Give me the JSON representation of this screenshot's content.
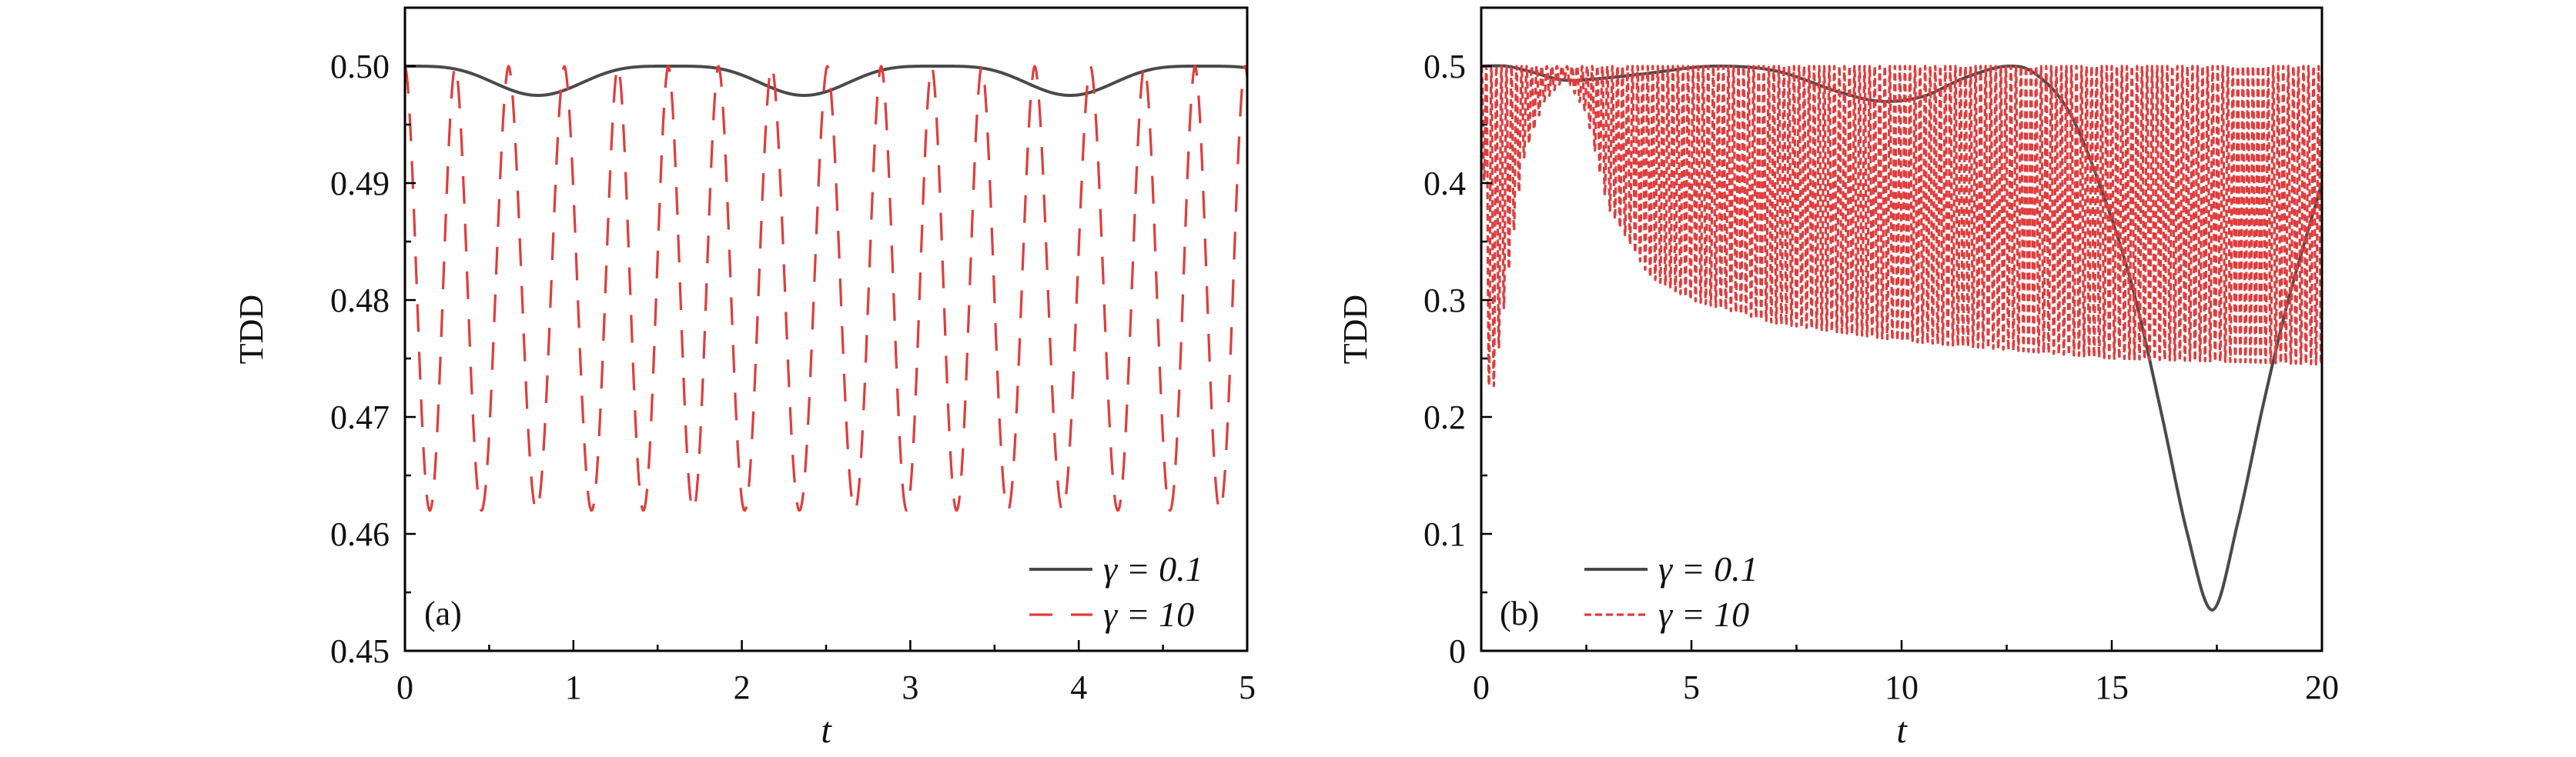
{
  "chart_data": [
    {
      "type": "line",
      "panel_label": "(a)",
      "xlabel": "t",
      "ylabel": "TDD",
      "xlim": [
        0,
        5
      ],
      "ylim": [
        0.45,
        0.505
      ],
      "xticks": [
        0,
        1,
        2,
        3,
        4,
        5
      ],
      "xtick_labels": [
        "0",
        "1",
        "2",
        "3",
        "4",
        "5"
      ],
      "yticks": [
        0.45,
        0.46,
        0.47,
        0.48,
        0.49,
        0.5
      ],
      "ytick_labels": [
        "0.45",
        "0.46",
        "0.47",
        "0.48",
        "0.49",
        "0.50"
      ],
      "xminor": 0.5,
      "yminor": 0.005,
      "legend_position": "bottom-right",
      "series": [
        {
          "name": "γ = 0.1",
          "color": "#4a4a4a",
          "style": "solid",
          "model": {
            "kind": "flat-dips",
            "max": 0.5,
            "min": 0.4975,
            "period": 1.58,
            "first_min": 0.79
          }
        },
        {
          "name": "γ = 10",
          "color": "#e03c3c",
          "style": "dashed",
          "model": {
            "kind": "oscillation",
            "max": 0.5,
            "min": 0.462,
            "period": 0.3125
          }
        }
      ]
    },
    {
      "type": "line",
      "panel_label": "(b)",
      "xlabel": "t",
      "ylabel": "TDD",
      "xlim": [
        0,
        20
      ],
      "ylim": [
        0,
        0.55
      ],
      "xticks": [
        0,
        5,
        10,
        15,
        20
      ],
      "xtick_labels": [
        "0",
        "5",
        "10",
        "15",
        "20"
      ],
      "yticks": [
        0,
        0.1,
        0.2,
        0.3,
        0.4,
        0.5
      ],
      "ytick_labels": [
        "0",
        "0.1",
        "0.2",
        "0.3",
        "0.4",
        "0.5"
      ],
      "xminor": 2.5,
      "yminor": 0.05,
      "legend_position": "bottom-left",
      "series": [
        {
          "name": "γ = 0.1",
          "color": "#4a4a4a",
          "style": "solid",
          "x": [
            0,
            0.6,
            1.2,
            2,
            3,
            4,
            5.5,
            7,
            8.5,
            9.5,
            10.5,
            11.5,
            12.5,
            13.2,
            14,
            14.8,
            15.5,
            16.2,
            16.8,
            17.4,
            18,
            18.6,
            19.2,
            20
          ],
          "y": [
            0.5,
            0.5,
            0.495,
            0.488,
            0.49,
            0.494,
            0.5,
            0.496,
            0.478,
            0.47,
            0.474,
            0.49,
            0.5,
            0.493,
            0.46,
            0.39,
            0.31,
            0.2,
            0.1,
            0.035,
            0.11,
            0.21,
            0.3,
            0.4
          ]
        },
        {
          "name": "γ = 10",
          "color": "#e03c3c",
          "style": "dotted",
          "model": {
            "kind": "envelope-oscillation",
            "max": 0.5,
            "period": 0.12,
            "lower_envelope_t": [
              0,
              0.2,
              0.35,
              0.6,
              1.0,
              1.5,
              2.0,
              2.5,
              3,
              4,
              5,
              7,
              10,
              15,
              20
            ],
            "lower_envelope_y": [
              0.5,
              0.2,
              0.24,
              0.31,
              0.42,
              0.47,
              0.49,
              0.46,
              0.38,
              0.32,
              0.3,
              0.28,
              0.265,
              0.25,
              0.245
            ]
          }
        }
      ]
    }
  ]
}
